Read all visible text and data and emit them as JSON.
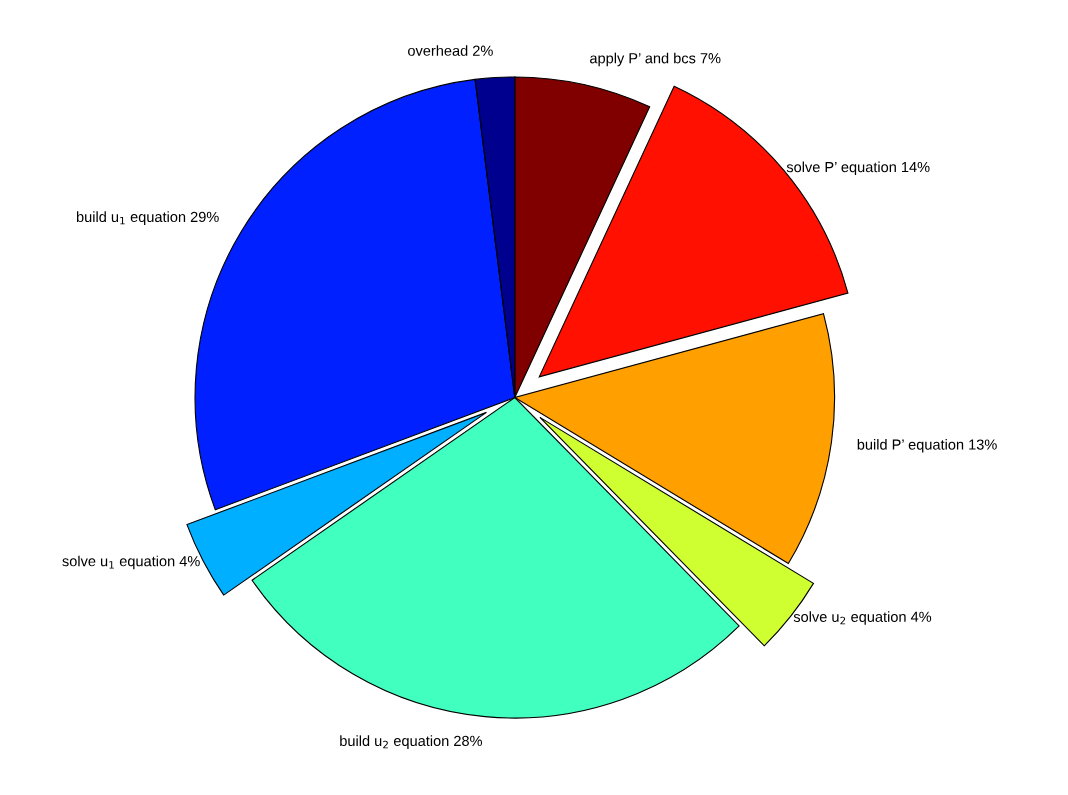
{
  "chart_data": {
    "type": "pie",
    "categories": [
      "apply P’ and bcs 7%",
      "solve P’ equation 14%",
      "build P’ equation 13%",
      "solve u$_{2}$ equation 4%",
      "build u$_{2}$ equation 28%",
      "solve u$_{1}$ equation 4%",
      "build u$_{1}$ equation 29%",
      "overhead 2%"
    ],
    "values": [
      7,
      14,
      13,
      4,
      28,
      4,
      29,
      2
    ],
    "colors": [
      "#800000",
      "#ff1000",
      "#ffa000",
      "#cfff30",
      "#40ffbf",
      "#00afff",
      "#0020ff",
      "#00008f"
    ]
  }
}
